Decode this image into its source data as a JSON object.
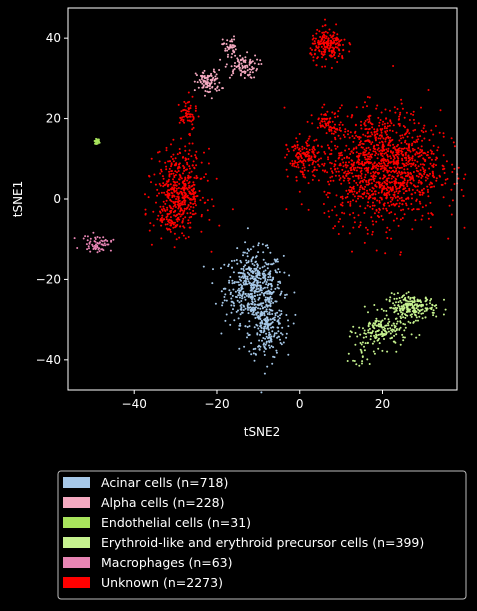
{
  "chart_data": {
    "type": "scatter",
    "xlabel": "tSNE2",
    "ylabel": "tSNE1",
    "xlim": [
      -56,
      38
    ],
    "ylim": [
      -47.5,
      47.5
    ],
    "xticks": [
      -40,
      -20,
      0,
      20
    ],
    "yticks": [
      -40,
      -20,
      0,
      20,
      40
    ],
    "grid": false,
    "background": "#000000",
    "legend_placement": "below plot",
    "series": [
      {
        "name": "Acinar cells (n=718)",
        "color": "#a6c8e8",
        "count": 718,
        "clusters": [
          {
            "x": -11,
            "y": -22,
            "sx": 3.5,
            "sy": 4.5,
            "n": 500
          },
          {
            "x": -8,
            "y": -32,
            "sx": 2.2,
            "sy": 4,
            "n": 218
          }
        ]
      },
      {
        "name": "Alpha cells (n=228)",
        "color": "#f4a9c0",
        "count": 228,
        "clusters": [
          {
            "x": -14,
            "y": 33,
            "sx": 2,
            "sy": 1.5,
            "n": 90
          },
          {
            "x": -17,
            "y": 38,
            "sx": 0.8,
            "sy": 1.2,
            "n": 40
          },
          {
            "x": -22,
            "y": 29,
            "sx": 1.5,
            "sy": 1.5,
            "n": 98
          }
        ]
      },
      {
        "name": "Endothelial cells (n=31)",
        "color": "#a8e45c",
        "count": 31,
        "clusters": [
          {
            "x": -49,
            "y": 14.3,
            "sx": 0.3,
            "sy": 0.3,
            "n": 31
          }
        ]
      },
      {
        "name": "Erythroid-like and erythroid precursor cells (n=399)",
        "color": "#c6f28f",
        "count": 399,
        "clusters": [
          {
            "x": 27,
            "y": -27,
            "sx": 3,
            "sy": 1.6,
            "n": 220
          },
          {
            "x": 20,
            "y": -33,
            "sx": 3,
            "sy": 2,
            "n": 150
          },
          {
            "x": 15,
            "y": -38,
            "sx": 1.4,
            "sy": 2.5,
            "n": 29
          }
        ]
      },
      {
        "name": "Macrophages (n=63)",
        "color": "#e885b4",
        "count": 63,
        "clusters": [
          {
            "x": -49,
            "y": -11,
            "sx": 1.8,
            "sy": 1,
            "n": 63
          }
        ]
      },
      {
        "name": "Unknown (n=2273)",
        "color": "#ff0000",
        "count": 2273,
        "clusters": [
          {
            "x": 20,
            "y": 8,
            "sx": 7,
            "sy": 7,
            "n": 1300
          },
          {
            "x": 7,
            "y": 38,
            "sx": 2.2,
            "sy": 2,
            "n": 200
          },
          {
            "x": -29,
            "y": 2,
            "sx": 3,
            "sy": 5,
            "n": 450
          },
          {
            "x": -27,
            "y": 21,
            "sx": 1,
            "sy": 2,
            "n": 60
          },
          {
            "x": 1,
            "y": 10,
            "sx": 2,
            "sy": 2.5,
            "n": 150
          },
          {
            "x": 7,
            "y": 19,
            "sx": 1.5,
            "sy": 1.2,
            "n": 60
          },
          {
            "x": -31,
            "y": -5,
            "sx": 2,
            "sy": 1.5,
            "n": 53
          }
        ]
      }
    ]
  }
}
